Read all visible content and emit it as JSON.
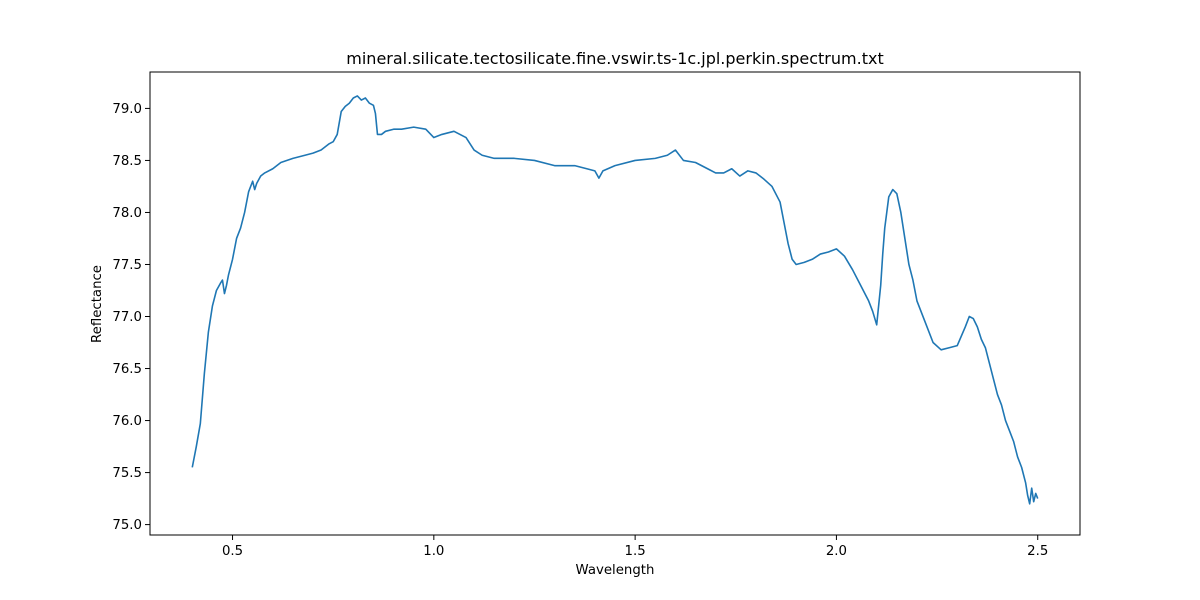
{
  "chart_data": {
    "type": "line",
    "title": "mineral.silicate.tectosilicate.fine.vswir.ts-1c.jpl.perkin.spectrum.txt",
    "xlabel": "Wavelength",
    "ylabel": "Reflectance",
    "xlim": [
      0.295,
      2.605
    ],
    "ylim": [
      74.9,
      79.35
    ],
    "xticks": [
      0.5,
      1.0,
      1.5,
      2.0,
      2.5
    ],
    "xtick_labels": [
      "0.5",
      "1.0",
      "1.5",
      "2.0",
      "2.5"
    ],
    "yticks": [
      75.0,
      75.5,
      76.0,
      76.5,
      77.0,
      77.5,
      78.0,
      78.5,
      79.0
    ],
    "ytick_labels": [
      "75.0",
      "75.5",
      "76.0",
      "76.5",
      "77.0",
      "77.5",
      "78.0",
      "78.5",
      "79.0"
    ],
    "grid": false,
    "legend": "none",
    "line_color": "#1f77b4",
    "series": [
      {
        "x": [
          0.4,
          0.41,
          0.42,
          0.43,
          0.44,
          0.45,
          0.46,
          0.47,
          0.475,
          0.48,
          0.485,
          0.49,
          0.5,
          0.51,
          0.52,
          0.53,
          0.54,
          0.55,
          0.555,
          0.56,
          0.57,
          0.58,
          0.6,
          0.62,
          0.65,
          0.68,
          0.7,
          0.72,
          0.74,
          0.75,
          0.76,
          0.77,
          0.78,
          0.79,
          0.8,
          0.81,
          0.82,
          0.83,
          0.84,
          0.85,
          0.855,
          0.86,
          0.87,
          0.88,
          0.9,
          0.92,
          0.95,
          0.98,
          1.0,
          1.02,
          1.05,
          1.08,
          1.1,
          1.12,
          1.15,
          1.2,
          1.25,
          1.3,
          1.35,
          1.38,
          1.4,
          1.41,
          1.42,
          1.45,
          1.5,
          1.55,
          1.58,
          1.6,
          1.62,
          1.65,
          1.68,
          1.7,
          1.72,
          1.74,
          1.76,
          1.78,
          1.8,
          1.82,
          1.84,
          1.86,
          1.87,
          1.88,
          1.89,
          1.9,
          1.92,
          1.94,
          1.96,
          1.98,
          2.0,
          2.02,
          2.04,
          2.06,
          2.08,
          2.09,
          2.1,
          2.11,
          2.115,
          2.12,
          2.13,
          2.14,
          2.15,
          2.16,
          2.17,
          2.18,
          2.19,
          2.2,
          2.22,
          2.24,
          2.26,
          2.28,
          2.3,
          2.32,
          2.33,
          2.34,
          2.35,
          2.36,
          2.37,
          2.38,
          2.39,
          2.4,
          2.41,
          2.42,
          2.43,
          2.44,
          2.45,
          2.46,
          2.47,
          2.475,
          2.48,
          2.485,
          2.49,
          2.495,
          2.5
        ],
        "y": [
          75.55,
          75.75,
          75.97,
          76.45,
          76.85,
          77.1,
          77.25,
          77.32,
          77.35,
          77.22,
          77.3,
          77.4,
          77.55,
          77.75,
          77.85,
          78.0,
          78.2,
          78.3,
          78.22,
          78.28,
          78.35,
          78.38,
          78.42,
          78.48,
          78.52,
          78.55,
          78.57,
          78.6,
          78.66,
          78.68,
          78.75,
          78.97,
          79.02,
          79.05,
          79.1,
          79.12,
          79.08,
          79.1,
          79.05,
          79.03,
          78.95,
          78.75,
          78.75,
          78.78,
          78.8,
          78.8,
          78.82,
          78.8,
          78.72,
          78.75,
          78.78,
          78.72,
          78.6,
          78.55,
          78.52,
          78.52,
          78.5,
          78.45,
          78.45,
          78.42,
          78.4,
          78.33,
          78.4,
          78.45,
          78.5,
          78.52,
          78.55,
          78.6,
          78.5,
          78.48,
          78.42,
          78.38,
          78.38,
          78.42,
          78.35,
          78.4,
          78.38,
          78.32,
          78.25,
          78.1,
          77.9,
          77.7,
          77.55,
          77.5,
          77.52,
          77.55,
          77.6,
          77.62,
          77.65,
          77.58,
          77.45,
          77.3,
          77.15,
          77.05,
          76.92,
          77.3,
          77.6,
          77.85,
          78.15,
          78.22,
          78.18,
          78.0,
          77.75,
          77.5,
          77.35,
          77.15,
          76.95,
          76.75,
          76.68,
          76.7,
          76.72,
          76.9,
          77.0,
          76.98,
          76.9,
          76.78,
          76.7,
          76.55,
          76.4,
          76.25,
          76.15,
          76.0,
          75.9,
          75.8,
          75.65,
          75.55,
          75.4,
          75.28,
          75.2,
          75.35,
          75.22,
          75.3,
          75.25
        ]
      }
    ]
  }
}
